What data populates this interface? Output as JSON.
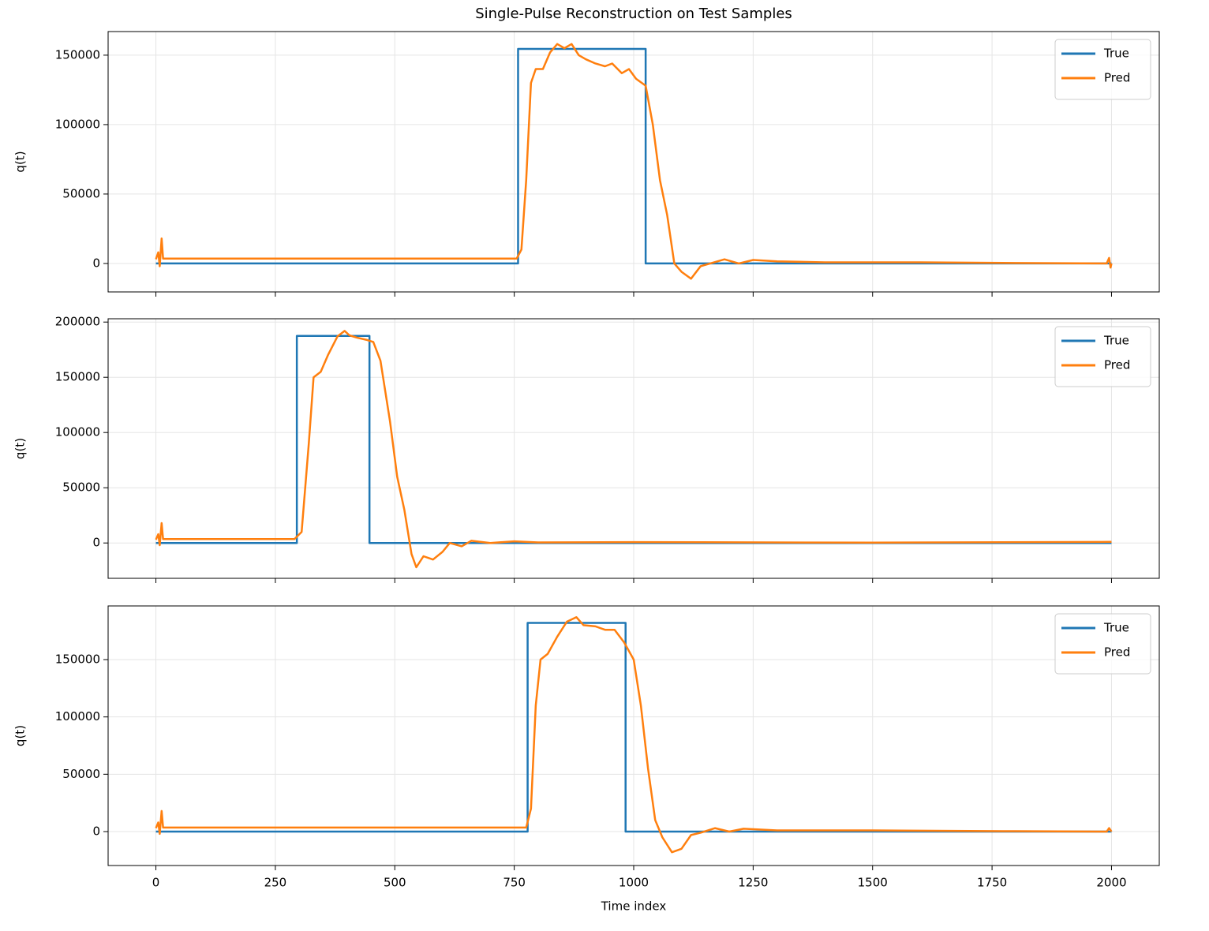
{
  "title": "Single-Pulse Reconstruction on Test Samples",
  "chart_data": [
    {
      "type": "line",
      "ylabel": "q(t)",
      "xlim": [
        -100,
        2100
      ],
      "ylim": [
        -20500,
        167000
      ],
      "xticks": [
        0,
        250,
        500,
        750,
        1000,
        1250,
        1500,
        1750,
        2000
      ],
      "yticks": [
        0,
        50000,
        100000,
        150000
      ],
      "grid": true,
      "legend": "upper right",
      "series": [
        {
          "name": "True",
          "color": "#1f77b4",
          "x": [
            0,
            758,
            758,
            1025,
            1025,
            2000
          ],
          "values": [
            0,
            0,
            154500,
            154500,
            0,
            0
          ]
        },
        {
          "name": "Pred",
          "color": "#ff7f0e",
          "x": [
            0,
            5,
            8,
            12,
            15,
            100,
            755,
            765,
            775,
            785,
            795,
            810,
            825,
            840,
            855,
            870,
            885,
            900,
            920,
            940,
            955,
            975,
            990,
            1005,
            1025,
            1040,
            1055,
            1070,
            1085,
            1100,
            1120,
            1140,
            1160,
            1190,
            1220,
            1250,
            1300,
            1400,
            1600,
            1800,
            1990,
            1995,
            1998,
            2000
          ],
          "values": [
            3000,
            8000,
            -2000,
            18000,
            3500,
            3500,
            3500,
            10000,
            60000,
            130000,
            140000,
            140000,
            152000,
            158000,
            155000,
            158000,
            150000,
            147000,
            144000,
            142000,
            144000,
            137000,
            140000,
            133000,
            128000,
            100000,
            60000,
            35000,
            0,
            -6000,
            -11000,
            -2000,
            0,
            3000,
            0,
            2500,
            1500,
            800,
            800,
            300,
            0,
            4000,
            -3000,
            0
          ]
        }
      ]
    },
    {
      "type": "line",
      "ylabel": "q(t)",
      "xlim": [
        -100,
        2100
      ],
      "ylim": [
        -32000,
        203000
      ],
      "xticks": [
        0,
        250,
        500,
        750,
        1000,
        1250,
        1500,
        1750,
        2000
      ],
      "yticks": [
        0,
        50000,
        100000,
        150000,
        200000
      ],
      "grid": true,
      "legend": "upper right",
      "series": [
        {
          "name": "True",
          "color": "#1f77b4",
          "x": [
            0,
            295,
            295,
            447,
            447,
            2000
          ],
          "values": [
            0,
            0,
            187500,
            187500,
            0,
            0
          ]
        },
        {
          "name": "Pred",
          "color": "#ff7f0e",
          "x": [
            0,
            5,
            8,
            12,
            15,
            290,
            305,
            320,
            330,
            345,
            360,
            380,
            395,
            405,
            420,
            440,
            455,
            470,
            490,
            505,
            520,
            535,
            545,
            560,
            580,
            600,
            615,
            640,
            660,
            700,
            750,
            800,
            1000,
            1500,
            2000
          ],
          "values": [
            3000,
            8000,
            -2000,
            18000,
            3500,
            3500,
            10000,
            90000,
            150000,
            155000,
            170000,
            187000,
            192000,
            188000,
            186000,
            184000,
            182000,
            165000,
            110000,
            60000,
            30000,
            -10000,
            -22000,
            -12000,
            -15000,
            -8000,
            0,
            -3000,
            2000,
            0,
            1500,
            500,
            800,
            300,
            1000
          ]
        }
      ]
    },
    {
      "type": "line",
      "ylabel": "q(t)",
      "xlabel": "Time index",
      "xlim": [
        -100,
        2100
      ],
      "ylim": [
        -29600,
        196800
      ],
      "xticks": [
        0,
        250,
        500,
        750,
        1000,
        1250,
        1500,
        1750,
        2000
      ],
      "yticks": [
        0,
        50000,
        100000,
        150000
      ],
      "grid": true,
      "legend": "upper right",
      "series": [
        {
          "name": "True",
          "color": "#1f77b4",
          "x": [
            0,
            778,
            778,
            983,
            983,
            2000
          ],
          "values": [
            0,
            0,
            182000,
            182000,
            0,
            0
          ]
        },
        {
          "name": "Pred",
          "color": "#ff7f0e",
          "x": [
            0,
            5,
            8,
            12,
            15,
            775,
            785,
            795,
            805,
            820,
            840,
            860,
            880,
            895,
            920,
            940,
            960,
            980,
            1000,
            1015,
            1030,
            1045,
            1060,
            1080,
            1100,
            1120,
            1140,
            1170,
            1200,
            1230,
            1300,
            1500,
            1800,
            1990,
            1995,
            2000
          ],
          "values": [
            3000,
            8000,
            -2000,
            18000,
            3500,
            3500,
            20000,
            110000,
            150000,
            155000,
            170000,
            183000,
            187000,
            180000,
            179000,
            176000,
            176000,
            165000,
            150000,
            110000,
            55000,
            10000,
            -5000,
            -18000,
            -15000,
            -3000,
            -1000,
            3000,
            0,
            2500,
            1000,
            1000,
            300,
            0,
            3000,
            0
          ]
        }
      ]
    }
  ]
}
